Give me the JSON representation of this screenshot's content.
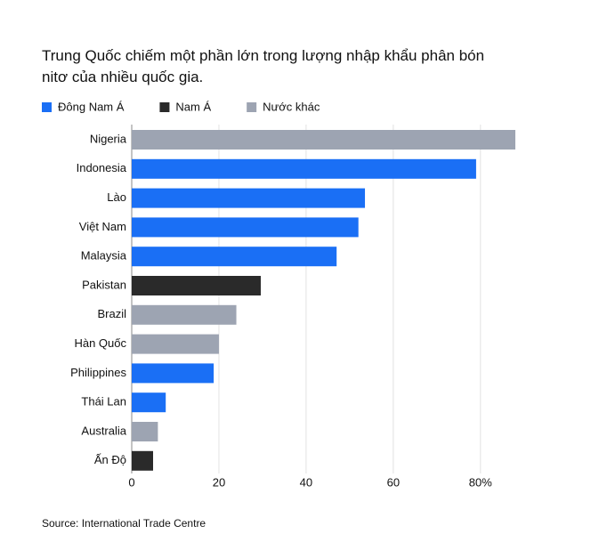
{
  "chart_data": {
    "type": "bar",
    "orientation": "horizontal",
    "title": "Trung Quốc chiếm một phần lớn trong lượng nhập khẩu phân bón nitơ của nhiều quốc gia.",
    "categories": [
      "Nigeria",
      "Indonesia",
      "Lào",
      "Việt Nam",
      "Malaysia",
      "Pakistan",
      "Brazil",
      "Hàn Quốc",
      "Philippines",
      "Thái Lan",
      "Australia",
      "Ấn Độ"
    ],
    "series": [
      {
        "name": "Đông Nam Á",
        "color": "#1a6ff5",
        "values": [
          null,
          79,
          53.5,
          52,
          47,
          null,
          null,
          null,
          18.8,
          7.8,
          null,
          null
        ]
      },
      {
        "name": "Nam Á",
        "color": "#2a2a2a",
        "values": [
          null,
          null,
          null,
          null,
          null,
          29.6,
          null,
          null,
          null,
          null,
          null,
          4.9
        ]
      },
      {
        "name": "Nước khác",
        "color": "#9da4b2",
        "values": [
          88,
          null,
          null,
          null,
          null,
          null,
          24,
          20,
          null,
          null,
          6,
          null
        ]
      }
    ],
    "xlim": [
      0,
      88
    ],
    "xticks": [
      0,
      20,
      40,
      60,
      {
        "value": 80,
        "label": "80%"
      }
    ],
    "grid": true,
    "source": "Source: International Trade Centre"
  }
}
